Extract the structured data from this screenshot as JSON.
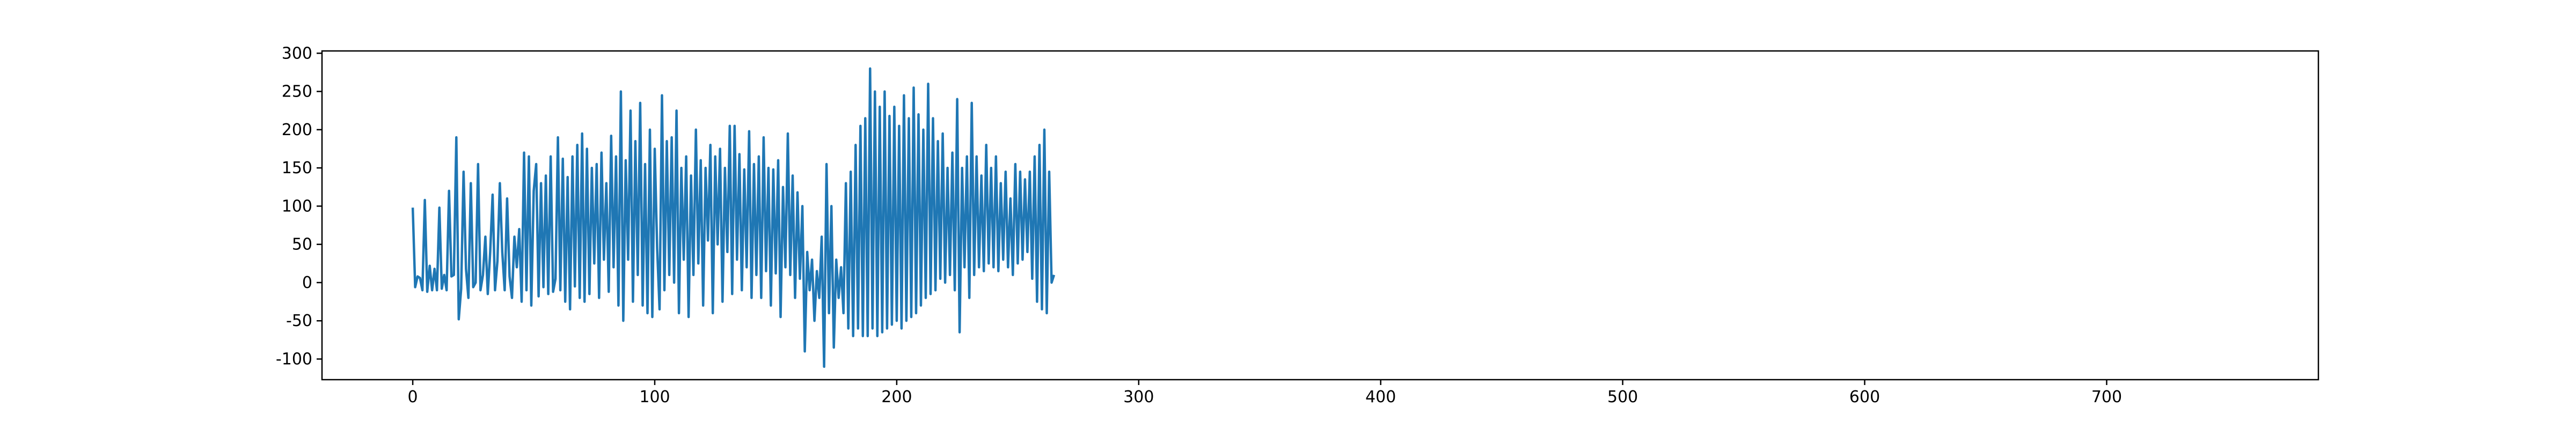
{
  "chart_data": {
    "type": "line",
    "title": "",
    "xlabel": "",
    "ylabel": "",
    "xlim": [
      -37.5,
      787.5
    ],
    "ylim": [
      -127,
      303
    ],
    "x_ticks": [
      0,
      100,
      200,
      300,
      400,
      500,
      600,
      700
    ],
    "y_ticks": [
      -100,
      -50,
      0,
      50,
      100,
      150,
      200,
      250,
      300
    ],
    "grid": false,
    "legend": "none",
    "colors": {
      "line": "#1f77b4",
      "axes": "#000000",
      "background": "#ffffff"
    },
    "x_start": 0,
    "x_step": 1,
    "segments": [
      {
        "start": 98,
        "pattern": [
          -6,
          8,
          6,
          -10,
          108,
          -12,
          22,
          -10,
          18,
          -10,
          98,
          -8,
          10,
          -10,
          120,
          8
        ],
        "repeat": 1
      },
      {
        "pattern": [
          10,
          190,
          -48,
          -8,
          145,
          18,
          -20,
          130,
          -6,
          0,
          155,
          -10,
          10,
          60,
          -15,
          40,
          115,
          -10,
          28,
          130,
          40,
          -10,
          110,
          8,
          -20,
          60,
          20,
          70
        ],
        "repeat": 1
      },
      {
        "pattern": [
          -25,
          170,
          -10,
          165,
          -30,
          120,
          155,
          -18,
          130,
          -6,
          140,
          -15,
          165,
          -12,
          5,
          190,
          -10,
          162,
          -25,
          138,
          -35,
          165,
          -5,
          180,
          -20,
          195,
          -25,
          175
        ],
        "repeat": 1
      },
      {
        "pattern": [
          -15,
          150,
          25,
          155,
          -20,
          170,
          30,
          130,
          -12,
          192,
          20,
          165,
          -30,
          250,
          -50,
          160,
          30,
          225,
          -25,
          185,
          10,
          235,
          -30,
          155,
          -40,
          200,
          -45,
          175,
          45,
          -35,
          245
        ],
        "repeat": 1
      },
      {
        "pattern": [
          -10,
          185,
          10,
          190,
          0,
          225,
          -40,
          150,
          30,
          165,
          -45,
          140,
          10,
          200,
          25,
          160,
          -30,
          150,
          55,
          180,
          -40,
          165,
          50,
          175,
          -25,
          150,
          40,
          205,
          -15,
          205
        ],
        "repeat": 1
      },
      {
        "pattern": [
          30,
          168,
          -10,
          148,
          20,
          198,
          -20,
          155,
          10,
          165,
          -20,
          190,
          15,
          150,
          -30,
          148,
          12,
          160,
          -45,
          125,
          20,
          195,
          10,
          140,
          -20,
          118,
          5,
          100
        ],
        "repeat": 1
      },
      {
        "pattern": [
          -90,
          40,
          -10,
          30,
          -50,
          15,
          -20,
          60,
          -110,
          155,
          -40,
          100,
          -85,
          30,
          -20,
          20,
          -40,
          130,
          -60,
          145,
          -70,
          180,
          -60,
          205,
          -70,
          215
        ],
        "repeat": 1
      },
      {
        "pattern": [
          -70,
          280,
          -60,
          250,
          -70,
          230,
          -65,
          250,
          -60,
          218,
          -55,
          230,
          -50,
          205,
          -60,
          245,
          -50,
          215,
          -45,
          255,
          -40,
          220,
          -30,
          200,
          -20,
          260,
          -15,
          215,
          -10,
          185,
          5,
          195,
          0,
          150,
          10,
          170
        ],
        "repeat": 1
      },
      {
        "pattern": [
          -10,
          240,
          -65,
          150,
          20,
          165,
          -20,
          235,
          10,
          165,
          20,
          140,
          15,
          180,
          25,
          150,
          20,
          165,
          15,
          130,
          30,
          145,
          20,
          110,
          10,
          155,
          25,
          145,
          30,
          135,
          40,
          145,
          5,
          165,
          -25,
          180,
          -35,
          200,
          -40,
          145,
          0,
          10
        ],
        "repeat": 1
      }
    ]
  }
}
